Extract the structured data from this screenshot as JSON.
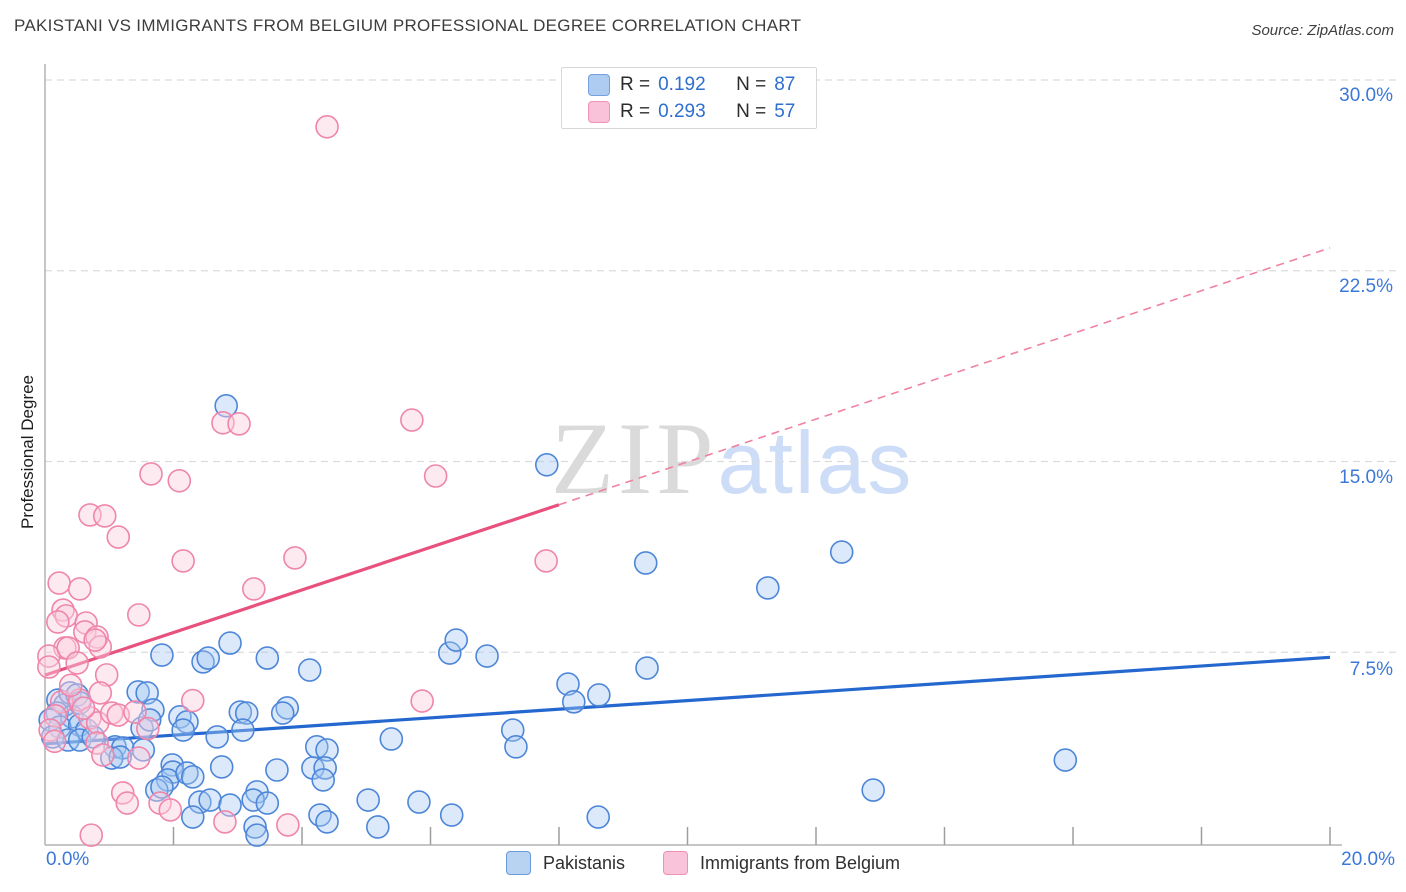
{
  "title": "PAKISTANI VS IMMIGRANTS FROM BELGIUM PROFESSIONAL DEGREE CORRELATION CHART",
  "source": "Source: ZipAtlas.com",
  "watermark": {
    "zip": "ZIP",
    "atlas": "atlas"
  },
  "axes": {
    "y_label": "Professional Degree",
    "y_ticks": [
      "30.0%",
      "22.5%",
      "15.0%",
      "7.5%"
    ],
    "x_tick_left": "0.0%",
    "x_tick_right": "20.0%"
  },
  "stats_legend": {
    "rows": [
      {
        "series": "Pakistanis",
        "r_label": "R =",
        "r": "0.192",
        "n_label": "N =",
        "n": "87"
      },
      {
        "series": "Immigrants from Belgium",
        "r_label": "R =",
        "r": "0.293",
        "n_label": "N =",
        "n": "57"
      }
    ]
  },
  "bottom_legend": [
    {
      "label": "Pakistanis"
    },
    {
      "label": "Immigrants from Belgium"
    }
  ],
  "colors": {
    "blue_point_stroke": "#4d86d8",
    "blue_point_fill": "rgba(164,199,242,0.40)",
    "pink_point_stroke": "#ef85ab",
    "pink_point_fill": "rgba(250,206,222,0.45)",
    "blue_line": "#2468cf",
    "pink_line": "#e8517e",
    "pink_line_dashed": "#f0829f",
    "grid": "#dcdcdc",
    "axis": "#b3b3b3",
    "tick": "#9e9e9e",
    "tick_label": "#3c78d8"
  },
  "chart_data": {
    "type": "scatter",
    "xlabel": "",
    "ylabel": "Professional Degree",
    "xlim": [
      0,
      20
    ],
    "ylim": [
      0,
      30
    ],
    "x_ticks_percent": [
      2,
      4,
      6,
      8,
      10,
      12,
      14,
      16,
      18,
      20
    ],
    "y_gridlines_percent": [
      7.5,
      15,
      22.5,
      30
    ],
    "series": [
      {
        "name": "Pakistanis",
        "r": 0.192,
        "n": 87,
        "points": [
          [
            0.2,
            5.62
          ],
          [
            0.31,
            5.43
          ],
          [
            0.39,
            5.9
          ],
          [
            0.5,
            5.82
          ],
          [
            0.54,
            5.51
          ],
          [
            0.19,
            5.11
          ],
          [
            0.42,
            4.96
          ],
          [
            0.08,
            4.84
          ],
          [
            0.23,
            4.56
          ],
          [
            0.54,
            4.64
          ],
          [
            0.65,
            4.44
          ],
          [
            0.12,
            4.17
          ],
          [
            0.36,
            4.05
          ],
          [
            0.54,
            4.05
          ],
          [
            0.75,
            4.17
          ],
          [
            1.09,
            3.78
          ],
          [
            1.21,
            3.74
          ],
          [
            1.53,
            3.66
          ],
          [
            1.04,
            3.34
          ],
          [
            1.17,
            3.38
          ],
          [
            1.45,
            5.94
          ],
          [
            1.59,
            5.9
          ],
          [
            1.68,
            5.23
          ],
          [
            1.51,
            4.52
          ],
          [
            1.63,
            4.84
          ],
          [
            1.82,
            7.39
          ],
          [
            2.46,
            7.12
          ],
          [
            2.54,
            7.27
          ],
          [
            2.88,
            7.86
          ],
          [
            3.46,
            7.27
          ],
          [
            4.12,
            6.8
          ],
          [
            2.1,
            4.96
          ],
          [
            2.21,
            4.76
          ],
          [
            2.15,
            4.44
          ],
          [
            3.04,
            5.15
          ],
          [
            3.14,
            5.11
          ],
          [
            3.08,
            4.44
          ],
          [
            2.68,
            4.17
          ],
          [
            3.77,
            5.31
          ],
          [
            3.7,
            5.11
          ],
          [
            4.23,
            3.78
          ],
          [
            4.39,
            3.66
          ],
          [
            1.98,
            3.07
          ],
          [
            1.99,
            2.79
          ],
          [
            1.91,
            2.48
          ],
          [
            2.21,
            2.75
          ],
          [
            2.75,
            2.99
          ],
          [
            1.74,
            2.08
          ],
          [
            2.3,
            2.6
          ],
          [
            2.41,
            1.61
          ],
          [
            2.57,
            1.69
          ],
          [
            2.88,
            1.49
          ],
          [
            2.3,
            1.02
          ],
          [
            1.82,
            2.2
          ],
          [
            3.3,
            2.01
          ],
          [
            3.24,
            1.69
          ],
          [
            3.46,
            1.57
          ],
          [
            3.61,
            2.87
          ],
          [
            4.17,
            2.95
          ],
          [
            4.36,
            2.95
          ],
          [
            4.33,
            2.48
          ],
          [
            4.28,
            1.1
          ],
          [
            4.39,
            0.83
          ],
          [
            3.27,
            0.63
          ],
          [
            3.3,
            0.31
          ],
          [
            2.82,
            17.19
          ],
          [
            7.81,
            14.87
          ],
          [
            6.3,
            7.47
          ],
          [
            6.4,
            7.98
          ],
          [
            6.88,
            7.35
          ],
          [
            9.37,
            6.88
          ],
          [
            8.14,
            6.25
          ],
          [
            8.62,
            5.82
          ],
          [
            8.23,
            5.55
          ],
          [
            5.39,
            4.09
          ],
          [
            7.28,
            4.44
          ],
          [
            7.33,
            3.78
          ],
          [
            5.03,
            1.69
          ],
          [
            5.82,
            1.61
          ],
          [
            5.18,
            0.63
          ],
          [
            6.33,
            1.1
          ],
          [
            8.61,
            1.02
          ],
          [
            9.35,
            11.01
          ],
          [
            11.25,
            10.03
          ],
          [
            12.4,
            11.44
          ],
          [
            12.89,
            2.08
          ],
          [
            15.88,
            3.26
          ]
        ]
      },
      {
        "name": "Immigrants from Belgium",
        "r": 0.293,
        "n": 57,
        "points": [
          [
            4.39,
            28.16
          ],
          [
            1.65,
            14.51
          ],
          [
            2.09,
            14.24
          ],
          [
            6.08,
            14.43
          ],
          [
            2.77,
            16.52
          ],
          [
            3.02,
            16.48
          ],
          [
            5.71,
            16.63
          ],
          [
            0.7,
            12.9
          ],
          [
            0.93,
            12.86
          ],
          [
            1.14,
            12.03
          ],
          [
            2.15,
            11.09
          ],
          [
            3.89,
            11.21
          ],
          [
            3.25,
            9.99
          ],
          [
            0.22,
            10.22
          ],
          [
            0.54,
            9.99
          ],
          [
            0.28,
            9.16
          ],
          [
            0.33,
            8.93
          ],
          [
            0.2,
            8.69
          ],
          [
            1.46,
            8.97
          ],
          [
            0.64,
            8.65
          ],
          [
            0.62,
            8.3
          ],
          [
            0.81,
            8.1
          ],
          [
            0.31,
            7.67
          ],
          [
            0.86,
            7.71
          ],
          [
            7.8,
            11.09
          ],
          [
            5.87,
            5.58
          ],
          [
            0.06,
            7.35
          ],
          [
            0.36,
            7.67
          ],
          [
            0.78,
            7.98
          ],
          [
            0.06,
            6.92
          ],
          [
            0.5,
            7.08
          ],
          [
            0.96,
            6.61
          ],
          [
            0.86,
            5.9
          ],
          [
            0.26,
            5.55
          ],
          [
            0.54,
            5.62
          ],
          [
            0.16,
            5.0
          ],
          [
            0.08,
            4.44
          ],
          [
            0.7,
            4.92
          ],
          [
            0.82,
            4.72
          ],
          [
            1.04,
            5.11
          ],
          [
            1.14,
            5.03
          ],
          [
            1.4,
            5.15
          ],
          [
            0.81,
            3.93
          ],
          [
            0.9,
            3.46
          ],
          [
            1.21,
            1.97
          ],
          [
            1.28,
            1.57
          ],
          [
            1.79,
            1.57
          ],
          [
            1.95,
            1.3
          ],
          [
            0.72,
            0.31
          ],
          [
            2.8,
            0.83
          ],
          [
            3.78,
            0.71
          ],
          [
            1.46,
            3.34
          ],
          [
            0.4,
            6.2
          ],
          [
            0.6,
            5.3
          ],
          [
            1.6,
            4.5
          ],
          [
            0.15,
            4.0
          ],
          [
            2.3,
            5.6
          ]
        ]
      }
    ],
    "trend_lines": [
      {
        "series": "Pakistanis",
        "style": "solid",
        "x": [
          0,
          20
        ],
        "y": [
          3.9,
          7.3
        ]
      },
      {
        "series": "Immigrants from Belgium",
        "style": "solid",
        "x": [
          0,
          8.0
        ],
        "y": [
          6.6,
          13.3
        ]
      },
      {
        "series": "Immigrants from Belgium",
        "style": "dashed",
        "x": [
          8.0,
          20
        ],
        "y": [
          13.3,
          23.4
        ]
      }
    ]
  }
}
